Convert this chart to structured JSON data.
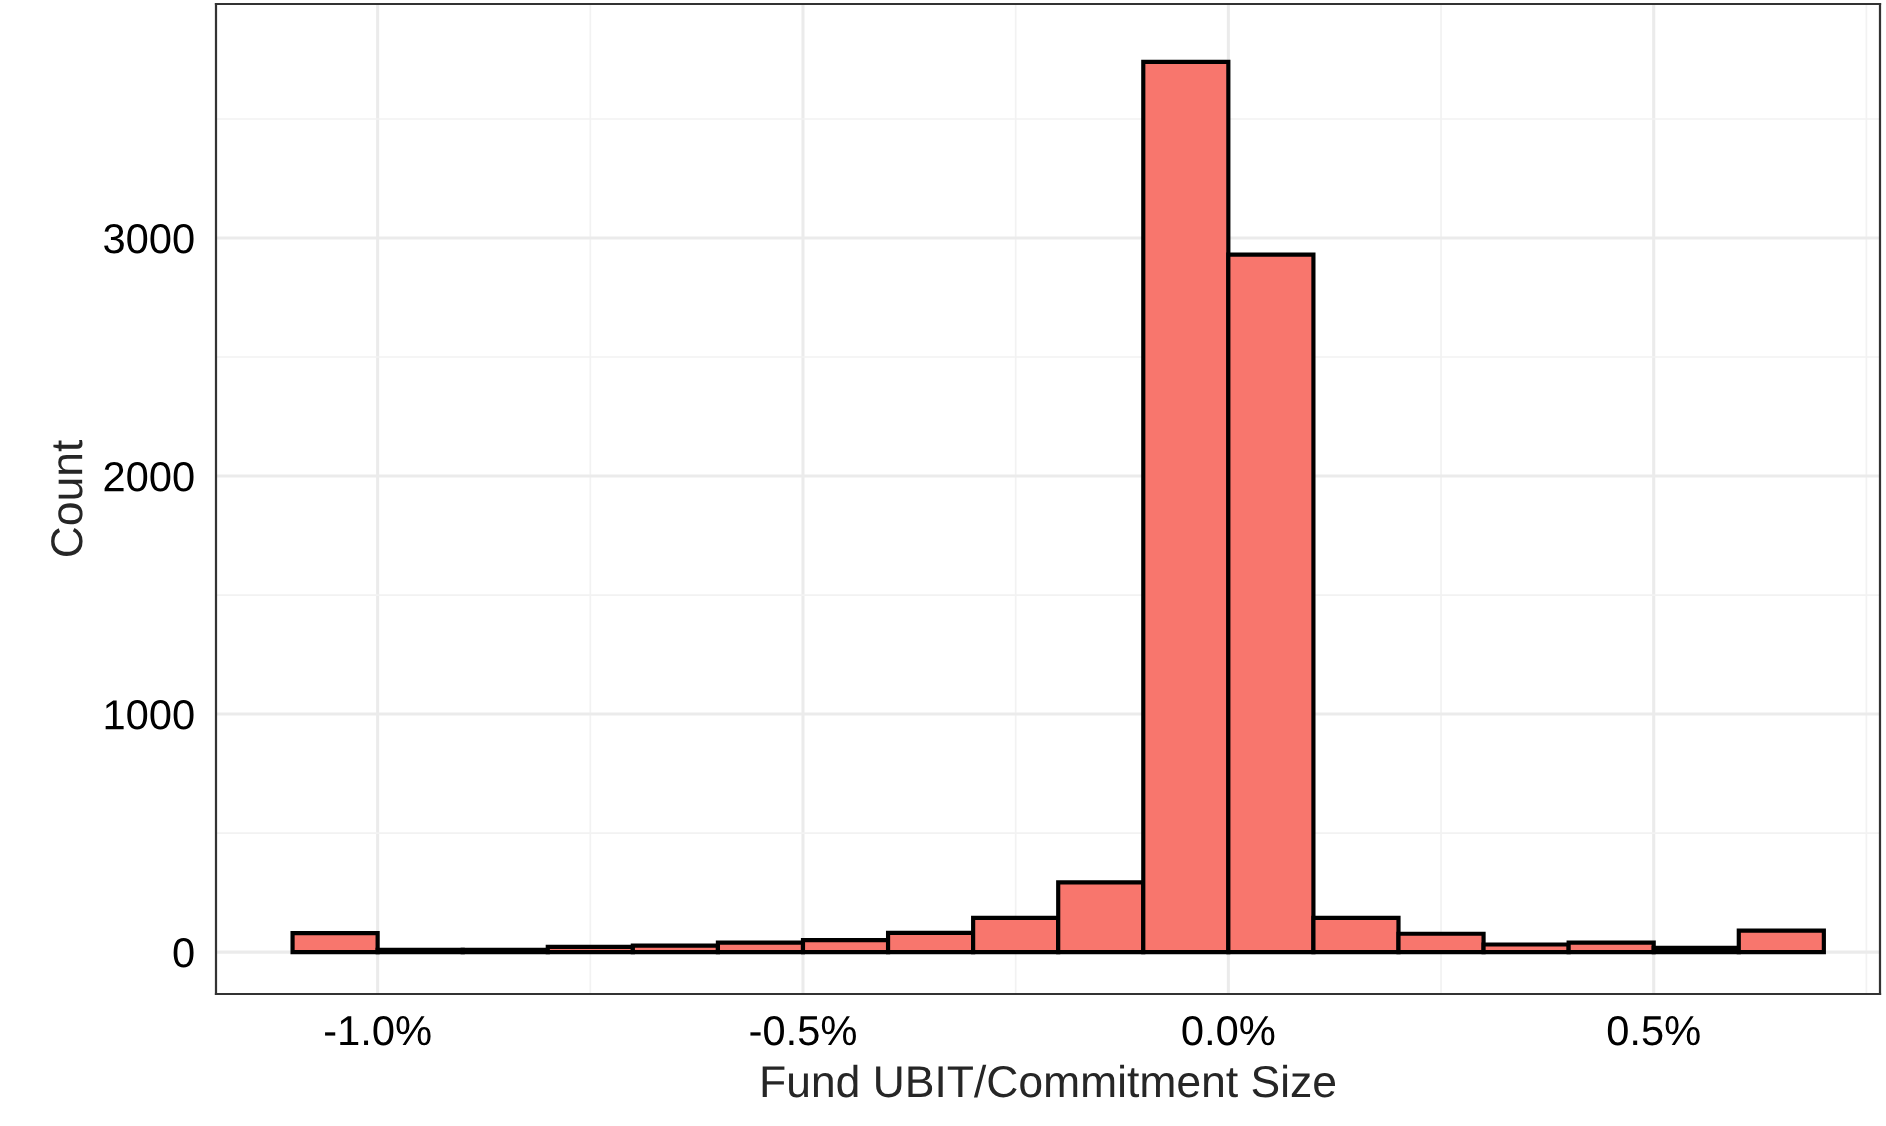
{
  "chart_data": {
    "type": "histogram",
    "xlabel": "Fund UBIT/Commitment Size",
    "ylabel": "Count",
    "bins": [
      -1.1,
      -1.0,
      -0.9,
      -0.8,
      -0.7,
      -0.6,
      -0.5,
      -0.4,
      -0.3,
      -0.2,
      -0.1,
      0.0,
      0.1,
      0.2,
      0.3,
      0.4,
      0.5,
      0.6,
      0.7
    ],
    "values": [
      80,
      10,
      10,
      22,
      27,
      40,
      50,
      81,
      144,
      293,
      3740,
      2930,
      144,
      77,
      32,
      40,
      18,
      90
    ],
    "color": "#f8766d",
    "xlim": [
      -1.19,
      0.766
    ],
    "ylim": [
      -176,
      3983
    ],
    "xticks": [
      {
        "value": -1.0,
        "label": "-1.0%"
      },
      {
        "value": -0.5,
        "label": "-0.5%"
      },
      {
        "value": 0.0,
        "label": "0.0%"
      },
      {
        "value": 0.5,
        "label": "0.5%"
      }
    ],
    "yticks": [
      0,
      1000,
      2000,
      3000
    ],
    "grid": true
  }
}
